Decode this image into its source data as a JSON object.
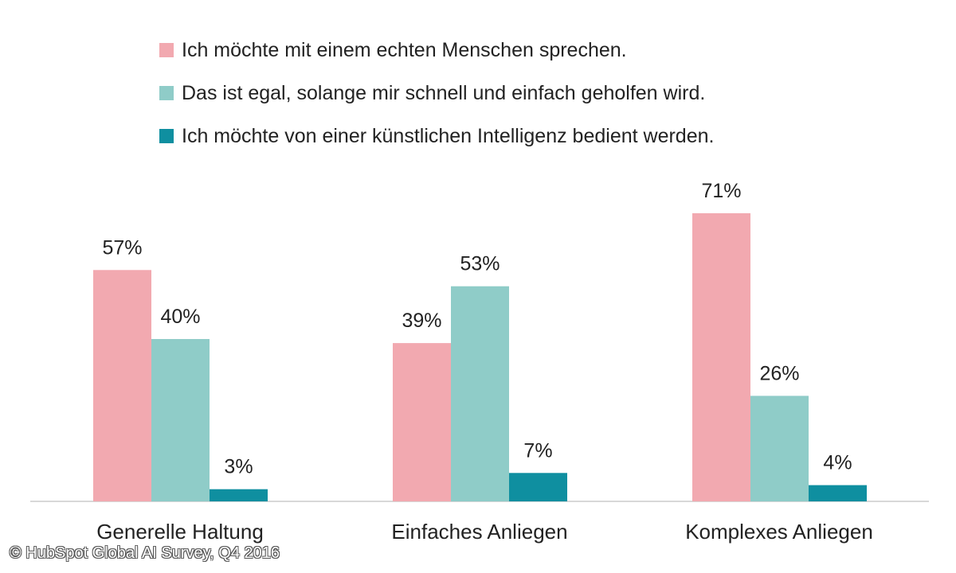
{
  "chart_data": {
    "type": "bar",
    "categories": [
      "Generelle Haltung",
      "Einfaches Anliegen",
      "Komplexes Anliegen"
    ],
    "series": [
      {
        "name": "Ich möchte mit einem echten Menschen sprechen.",
        "color": "#f2a9b0",
        "values": [
          57,
          39,
          71
        ]
      },
      {
        "name": "Das ist egal, solange mir schnell und einfach geholfen wird.",
        "color": "#8fccc8",
        "values": [
          40,
          53,
          26
        ]
      },
      {
        "name": "Ich möchte von einer künstlichen Intelligenz bedient werden.",
        "color": "#0f8fa0",
        "values": [
          3,
          7,
          4
        ]
      }
    ],
    "value_suffix": "%",
    "ylim": [
      0,
      80
    ],
    "grid": false,
    "legend_position": "top"
  },
  "credit": "© HubSpot Global AI Survey, Q4 2016"
}
